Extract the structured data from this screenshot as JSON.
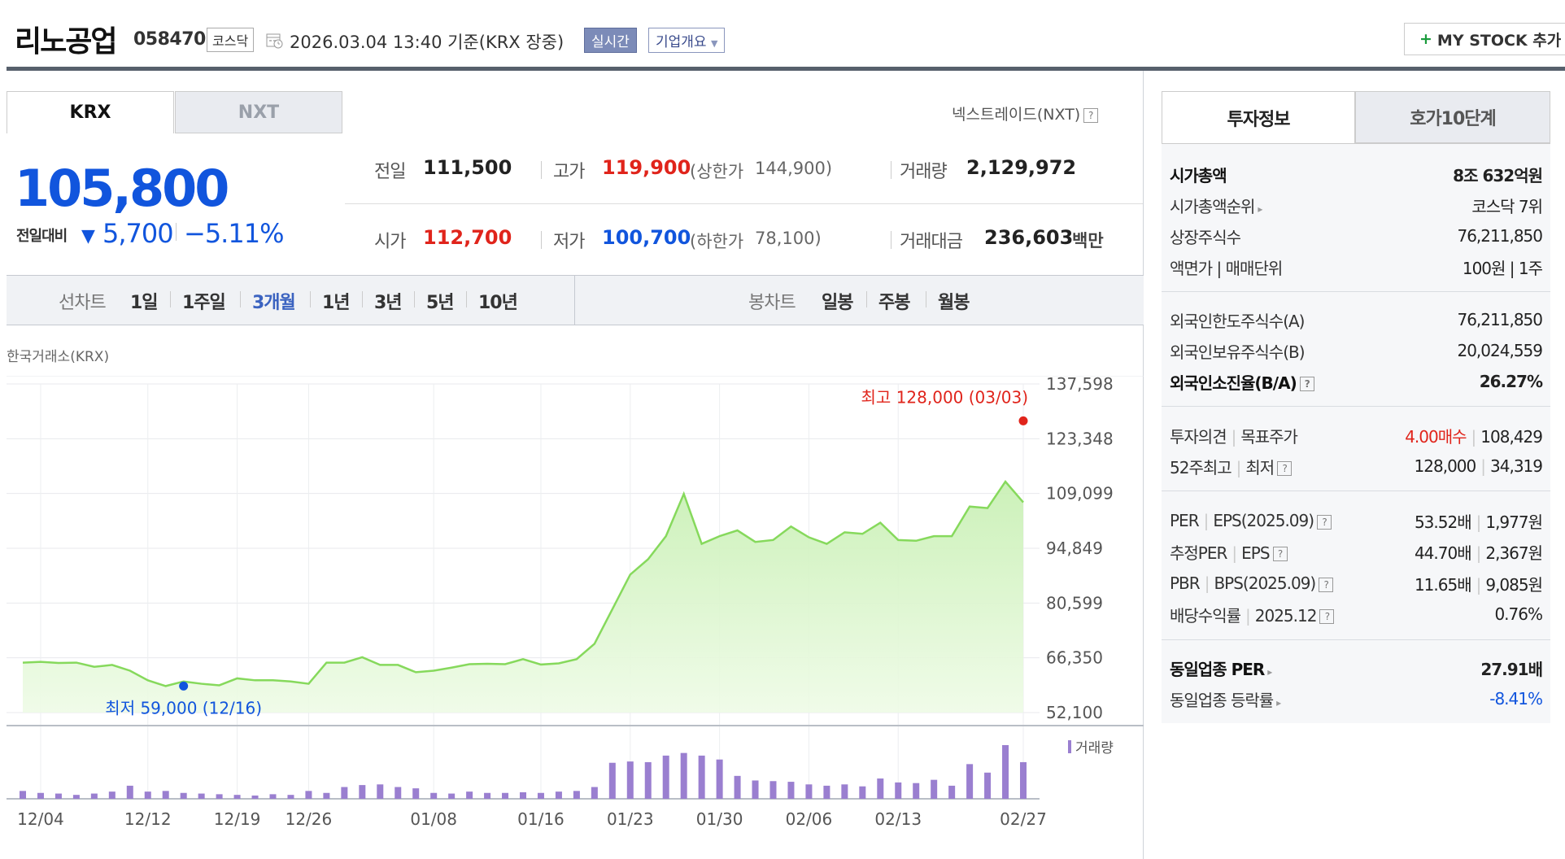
{
  "header": {
    "name": "리노공업",
    "code": "058470",
    "market": "코스닥",
    "datetime": "2026.03.04 13:40  기준(KRX 장중)",
    "realtime_btn": "실시간",
    "company_btn": "기업개요",
    "mystock_btn": "MY STOCK 추가"
  },
  "market_tabs": [
    "KRX",
    "NXT"
  ],
  "nxt_link": "넥스트레이드(NXT)",
  "price": {
    "current": "105,800",
    "change_label": "전일대비",
    "change": "5,700",
    "change_pct": "−5.11%"
  },
  "quote": {
    "prev_label": "전일",
    "prev": "111,500",
    "open_label": "시가",
    "open": "112,700",
    "high_label": "고가",
    "high": "119,900",
    "upper_label": "(상한가",
    "upper": "144,900)",
    "low_label": "저가",
    "low": "100,700",
    "lower_label": "(하한가",
    "lower": "78,100)",
    "volume_label": "거래량",
    "volume": "2,129,972",
    "amount_label": "거래대금",
    "amount": "236,603",
    "amount_unit": "백만"
  },
  "period": {
    "line_label": "선차트",
    "line_options": [
      "1일",
      "1주일",
      "3개월",
      "1년",
      "3년",
      "5년",
      "10년"
    ],
    "selected": "3개월",
    "candle_label": "봉차트",
    "candle_options": [
      "일봉",
      "주봉",
      "월봉"
    ]
  },
  "exchange_label": "한국거래소(KRX)",
  "chart_data": {
    "type": "area",
    "y_ticks": [
      "137,598",
      "123,348",
      "109,099",
      "94,849",
      "80,599",
      "66,350",
      "52,100"
    ],
    "ylim": [
      52100,
      137598
    ],
    "x_ticks": [
      "12/04",
      "12/12",
      "12/19",
      "12/26",
      "01/08",
      "01/16",
      "01/23",
      "01/30",
      "02/06",
      "02/13",
      "02/27"
    ],
    "x_tick_index": [
      1,
      7,
      12,
      16,
      23,
      29,
      34,
      39,
      44,
      49,
      56
    ],
    "price": [
      65100,
      65300,
      65000,
      65100,
      64000,
      64500,
      63000,
      60500,
      59000,
      60200,
      59600,
      59200,
      61000,
      60500,
      60500,
      60200,
      59600,
      65100,
      65100,
      66500,
      64500,
      64500,
      62600,
      63000,
      63800,
      64700,
      64800,
      64700,
      66000,
      64600,
      64900,
      66000,
      70000,
      79000,
      88000,
      92000,
      98000,
      109000,
      96000,
      98000,
      99500,
      96500,
      97000,
      100500,
      97700,
      96000,
      99000,
      98600,
      101500,
      97000,
      96800,
      98000,
      98000,
      105700,
      105300,
      112200,
      106800
    ],
    "volume": [
      12,
      9,
      8,
      6,
      8,
      11,
      20,
      11,
      12,
      9,
      8,
      7,
      6,
      5,
      7,
      6,
      12,
      9,
      18,
      21,
      22,
      18,
      16,
      9,
      8,
      11,
      9,
      9,
      10,
      9,
      11,
      12,
      18,
      55,
      57,
      56,
      66,
      70,
      66,
      60,
      35,
      28,
      27,
      26,
      22,
      20,
      22,
      19,
      31,
      25,
      24,
      29,
      20,
      53,
      40,
      82,
      56
    ],
    "high_label": "최고 128,000 (03/03)",
    "high_value": 128000,
    "high_index": 56,
    "low_label": "최저 59,000 (12/16)",
    "low_value": 59000,
    "low_index": 9,
    "volume_legend": "거래량",
    "colors": {
      "line": "#86d95c",
      "fill": "#c9f0b5",
      "bar": "#9a7fd0",
      "high": "#e0241b",
      "low": "#1155dd"
    }
  },
  "invest": {
    "tabs": [
      "투자정보",
      "호가10단계"
    ],
    "rows1": [
      {
        "k": "시가총액",
        "v": "8조 632억원"
      },
      {
        "k": "시가총액순위",
        "v": "코스닥 7위"
      },
      {
        "k": "상장주식수",
        "v": "76,211,850"
      },
      {
        "k": "액면가 | 매매단위",
        "v": "100원 | 1주"
      }
    ],
    "rows2": [
      {
        "k": "외국인한도주식수(A)",
        "v": "76,211,850"
      },
      {
        "k": "외국인보유주식수(B)",
        "v": "20,024,559"
      },
      {
        "k": "외국인소진율(B/A)",
        "v": "26.27%"
      }
    ],
    "opinion_k": "투자의견",
    "target_k": "목표주가",
    "opinion_v": "4.00매수",
    "target_v": "108,429",
    "w52_k": "52주최고",
    "w52_low_k": "최저",
    "w52_high_v": "128,000",
    "w52_low_v": "34,319",
    "per_k": "PER",
    "eps_k": "EPS(2025.09)",
    "per_v": "53.52배",
    "eps_v": "1,977원",
    "eper_k": "추정PER",
    "eeps_k": "EPS",
    "eper_v": "44.70배",
    "eeps_v": "2,367원",
    "pbr_k": "PBR",
    "bps_k": "BPS(2025.09)",
    "pbr_v": "11.65배",
    "bps_v": "9,085원",
    "div_k": "배당수익률",
    "div_year": "2025.12",
    "div_v": "0.76%",
    "ind_per_k": "동일업종 PER",
    "ind_per_v": "27.91배",
    "ind_rate_k": "동일업종 등락률",
    "ind_rate_v": "-8.41%"
  }
}
